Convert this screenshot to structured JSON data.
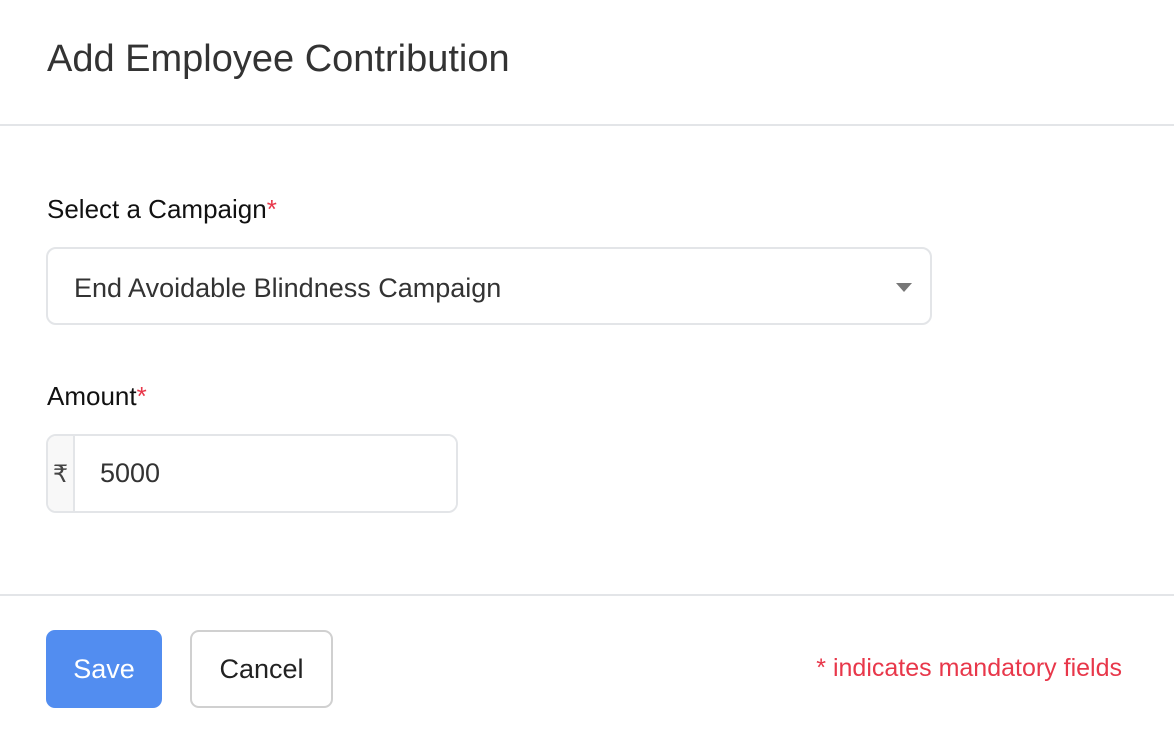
{
  "dialog": {
    "title": "Add Employee Contribution"
  },
  "campaign": {
    "label": "Select a Campaign",
    "required_mark": "*",
    "value": "End Avoidable Blindness Campaign"
  },
  "amount": {
    "label": "Amount",
    "required_mark": "*",
    "currency_symbol": "₹",
    "value": "5000"
  },
  "footer": {
    "save_label": "Save",
    "cancel_label": "Cancel",
    "mandatory_note": "* indicates mandatory fields"
  },
  "colors": {
    "primary": "#528df0",
    "required": "#e8374a"
  }
}
